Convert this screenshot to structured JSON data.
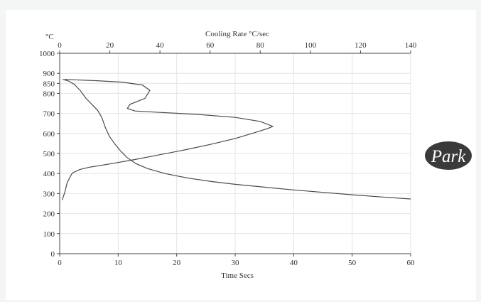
{
  "chart_data": {
    "type": "line",
    "ylabel": "°C",
    "xlabel": "Time  Secs",
    "x2label": "Cooling Rate  °C/sec",
    "ylim": [
      0,
      1000
    ],
    "xlim": [
      0,
      60
    ],
    "x2lim": [
      0,
      140
    ],
    "yticks": [
      0,
      100,
      200,
      300,
      400,
      500,
      600,
      700,
      800,
      850,
      900,
      1000
    ],
    "xticks": [
      0,
      10,
      20,
      30,
      40,
      50,
      60
    ],
    "x2ticks": [
      0,
      20,
      40,
      60,
      80,
      100,
      120,
      140
    ],
    "grid": true,
    "series": [
      {
        "axis": "time",
        "points": [
          [
            0.5,
            870
          ],
          [
            1.5,
            862
          ],
          [
            2.5,
            845
          ],
          [
            3.5,
            815
          ],
          [
            4.5,
            775
          ],
          [
            5.5,
            745
          ],
          [
            6.5,
            715
          ],
          [
            7.2,
            680
          ],
          [
            7.8,
            630
          ],
          [
            8.5,
            585
          ],
          [
            9.5,
            545
          ],
          [
            10.5,
            510
          ],
          [
            11.5,
            480
          ],
          [
            13,
            450
          ],
          [
            15,
            425
          ],
          [
            18,
            400
          ],
          [
            22,
            377
          ],
          [
            26,
            360
          ],
          [
            30,
            346
          ],
          [
            35,
            332
          ],
          [
            40,
            318
          ],
          [
            45,
            306
          ],
          [
            50,
            294
          ],
          [
            55,
            283
          ],
          [
            60,
            273
          ]
        ]
      },
      {
        "axis": "cooling_rate",
        "points": [
          [
            1,
            268
          ],
          [
            2,
            305
          ],
          [
            3,
            355
          ],
          [
            5,
            402
          ],
          [
            8,
            420
          ],
          [
            12,
            432
          ],
          [
            20,
            448
          ],
          [
            30,
            470
          ],
          [
            40,
            494
          ],
          [
            50,
            518
          ],
          [
            60,
            545
          ],
          [
            70,
            575
          ],
          [
            78,
            605
          ],
          [
            83,
            625
          ],
          [
            85,
            635
          ],
          [
            80,
            660
          ],
          [
            70,
            680
          ],
          [
            55,
            695
          ],
          [
            40,
            705
          ],
          [
            30,
            712
          ],
          [
            27,
            725
          ],
          [
            28,
            745
          ],
          [
            34,
            775
          ],
          [
            36,
            815
          ],
          [
            33,
            842
          ],
          [
            25,
            856
          ],
          [
            15,
            863
          ],
          [
            5,
            868
          ],
          [
            2,
            870
          ]
        ]
      }
    ]
  },
  "logo": {
    "text": "Park"
  }
}
